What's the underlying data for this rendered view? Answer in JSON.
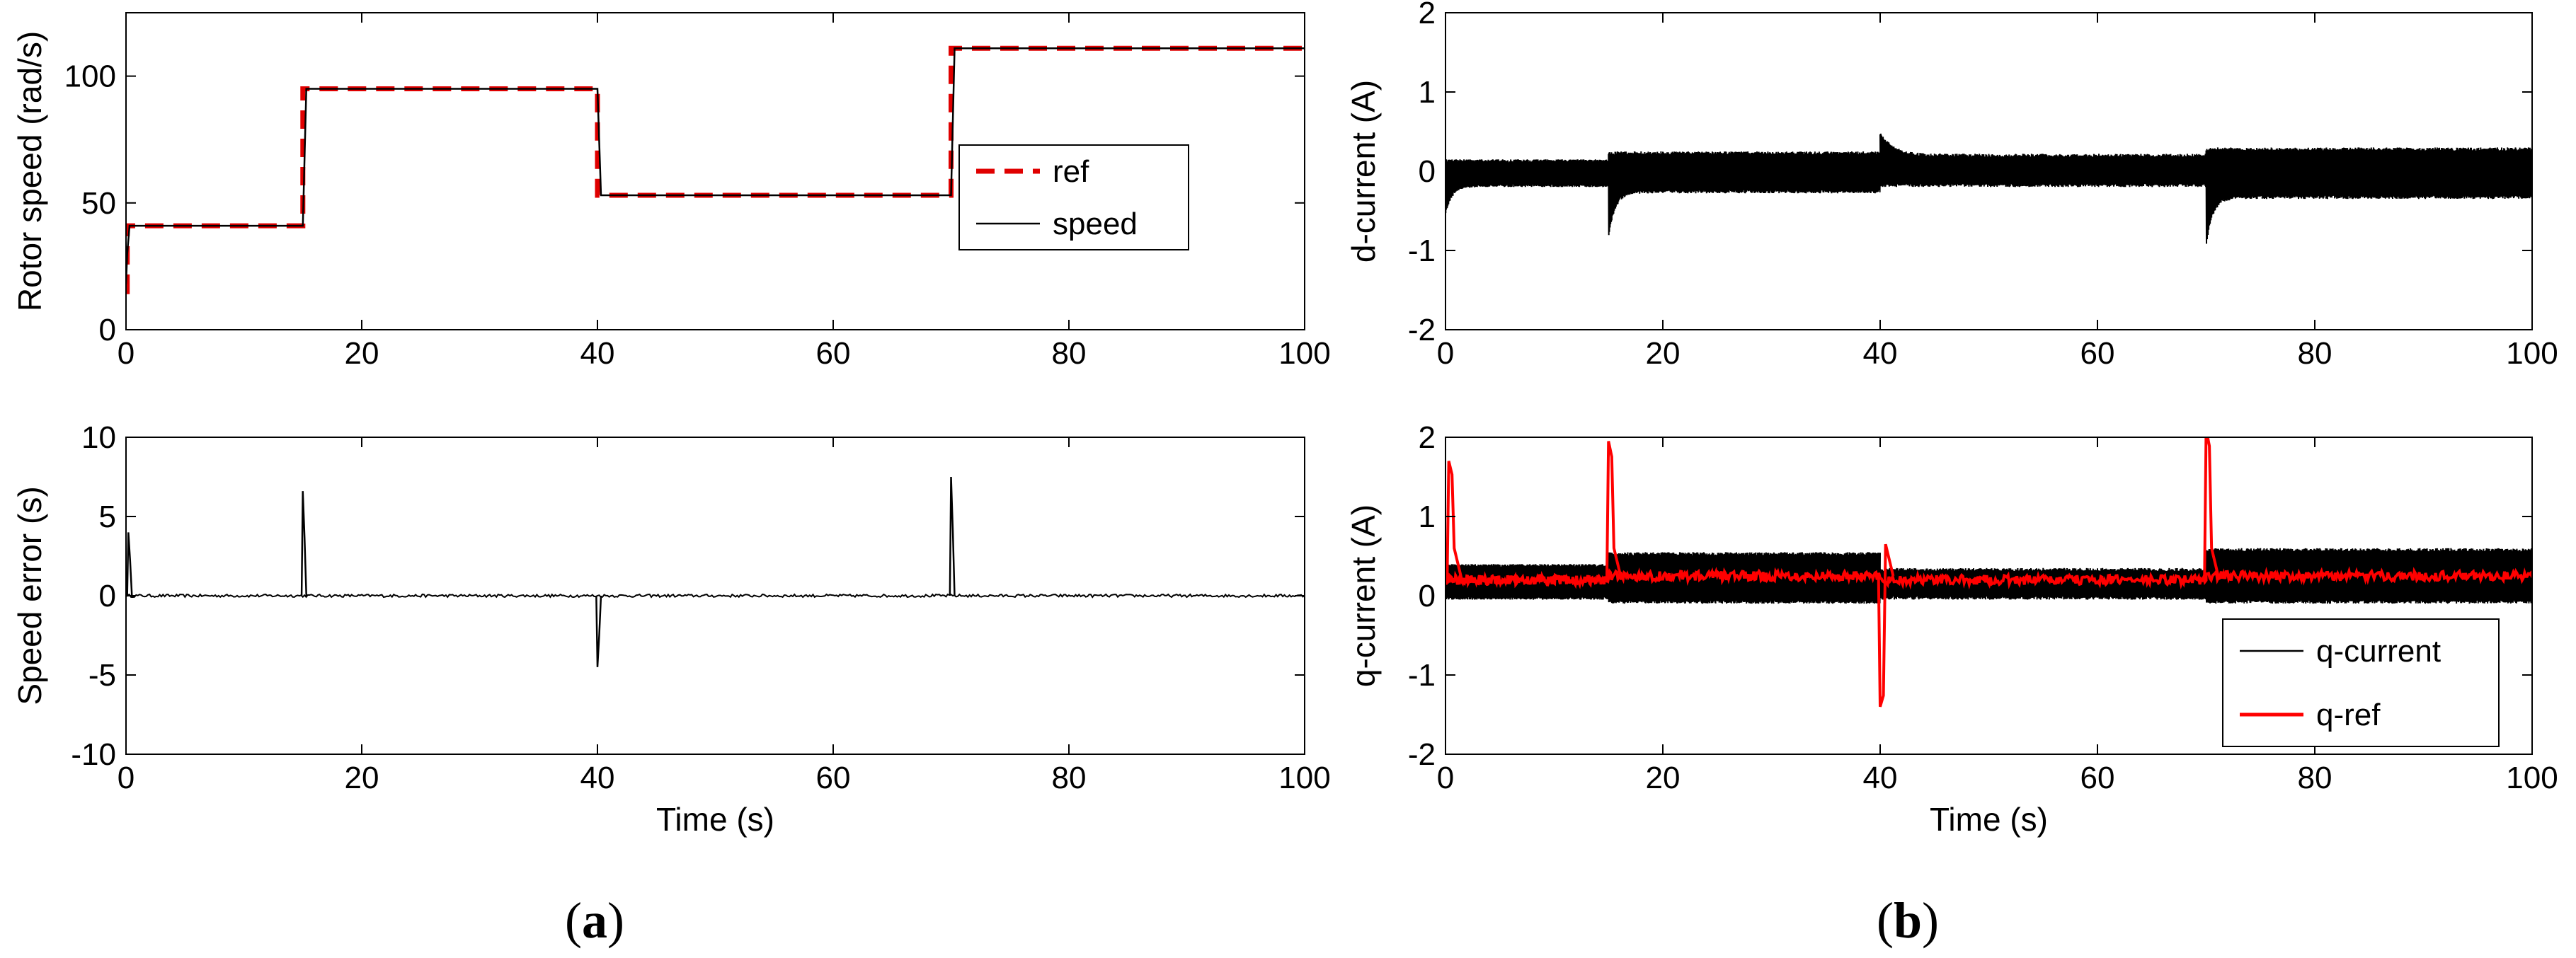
{
  "panel_labels": {
    "a": "a",
    "b": "b"
  },
  "chart_data": [
    {
      "id": "rotor-speed",
      "type": "line",
      "xlabel": "",
      "ylabel": "Rotor speed (rad/s)",
      "xlim": [
        0,
        100
      ],
      "ylim": [
        0,
        125
      ],
      "xticks": [
        0,
        20,
        40,
        60,
        80,
        100
      ],
      "yticks": [
        0,
        50,
        100
      ],
      "legend": {
        "position": "right",
        "entries": [
          "ref",
          "speed"
        ]
      },
      "series": [
        {
          "name": "ref",
          "color": "#e00000",
          "style": "dashed",
          "x": [
            0,
            0.1,
            0.1,
            15,
            15,
            40,
            40,
            70,
            70,
            100
          ],
          "y": [
            15,
            15,
            41,
            41,
            95,
            95,
            53,
            53,
            111,
            111
          ]
        },
        {
          "name": "speed",
          "color": "#000000",
          "style": "solid",
          "x": [
            0,
            0.1,
            0.3,
            15,
            15.3,
            40,
            40.3,
            70,
            70.3,
            100
          ],
          "y": [
            18,
            30,
            41,
            41,
            95,
            95,
            53,
            53,
            111,
            111
          ]
        }
      ]
    },
    {
      "id": "speed-error",
      "type": "line",
      "xlabel": "Time (s)",
      "ylabel": "Speed error (s)",
      "xlim": [
        0,
        100
      ],
      "ylim": [
        -10,
        10
      ],
      "xticks": [
        0,
        20,
        40,
        60,
        80,
        100
      ],
      "yticks": [
        -10,
        -5,
        0,
        5,
        10
      ],
      "series": [
        {
          "name": "error",
          "color": "#000000",
          "style": "solid",
          "spikes": [
            {
              "x": 0.2,
              "y": 4
            },
            {
              "x": 15,
              "y": 6.6
            },
            {
              "x": 40,
              "y": -4.5
            },
            {
              "x": 70,
              "y": 7.5
            }
          ]
        }
      ]
    },
    {
      "id": "d-current",
      "type": "line",
      "xlabel": "",
      "ylabel": "d-current (A)",
      "xlim": [
        0,
        100
      ],
      "ylim": [
        -2,
        2
      ],
      "xticks": [
        0,
        20,
        40,
        60,
        80,
        100
      ],
      "yticks": [
        -2,
        -1,
        0,
        1,
        2
      ],
      "series": [
        {
          "name": "d-current",
          "color": "#000000",
          "style": "band",
          "segments": [
            {
              "x": [
                0,
                15
              ],
              "upper": 0.15,
              "lower": -0.2,
              "start_low": -0.55
            },
            {
              "x": [
                15,
                40
              ],
              "upper": 0.25,
              "lower": -0.28,
              "start_low": -0.85
            },
            {
              "x": [
                40,
                70
              ],
              "upper": 0.22,
              "lower": -0.2,
              "start_high": 0.5
            },
            {
              "x": [
                70,
                100
              ],
              "upper": 0.3,
              "lower": -0.35,
              "start_low": -0.95
            }
          ]
        }
      ]
    },
    {
      "id": "q-current",
      "type": "line",
      "xlabel": "Time (s)",
      "ylabel": "q-current (A)",
      "xlim": [
        0,
        100
      ],
      "ylim": [
        -2,
        2
      ],
      "xticks": [
        0,
        20,
        40,
        60,
        80,
        100
      ],
      "yticks": [
        -2,
        -1,
        0,
        1,
        2
      ],
      "legend": {
        "position": "bottom-right",
        "entries": [
          "q-current",
          "q-ref"
        ]
      },
      "series": [
        {
          "name": "q-current",
          "color": "#000000",
          "style": "band",
          "segments": [
            {
              "x": [
                0,
                15
              ],
              "upper": 0.4,
              "lower": -0.05
            },
            {
              "x": [
                15,
                40
              ],
              "upper": 0.55,
              "lower": -0.1
            },
            {
              "x": [
                40,
                70
              ],
              "upper": 0.35,
              "lower": -0.05
            },
            {
              "x": [
                70,
                100
              ],
              "upper": 0.6,
              "lower": -0.1
            }
          ]
        },
        {
          "name": "q-ref",
          "color": "#ff0000",
          "style": "solid",
          "base": [
            {
              "x": [
                0,
                15
              ],
              "y": 0.2
            },
            {
              "x": [
                15,
                40
              ],
              "y": 0.25
            },
            {
              "x": [
                40,
                70
              ],
              "y": 0.2
            },
            {
              "x": [
                70,
                100
              ],
              "y": 0.25
            }
          ],
          "spikes": [
            {
              "x": 0.3,
              "y": 1.7
            },
            {
              "x": 15,
              "y": 1.95
            },
            {
              "x": 40,
              "y": -1.4
            },
            {
              "x": 70,
              "y": 2.1
            }
          ]
        }
      ]
    }
  ]
}
